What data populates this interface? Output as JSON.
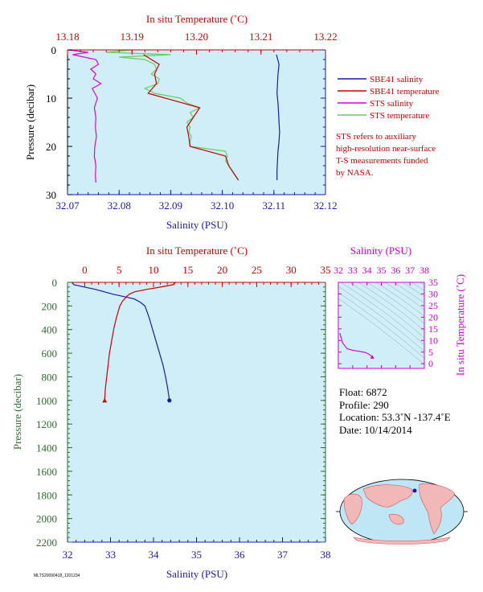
{
  "colors": {
    "plot_bg": "#d0eef8",
    "blue": "#1a1aaa",
    "red": "#cc0000",
    "magenta": "#cc00cc",
    "green": "#2e6b2e",
    "sts_temp": "#66cc66",
    "sts_sal": "#dd00dd"
  },
  "chart_data": [
    {
      "type": "line",
      "name_top_axis": "In situ Temperature (˚C)",
      "xlabel": "Salinity (PSU)",
      "ylabel": "Pressure (decibar)",
      "x_salinity_range": [
        32.07,
        32.12
      ],
      "x_salinity_ticks": [
        "32.07",
        "32.08",
        "32.09",
        "32.10",
        "32.11",
        "32.12"
      ],
      "x_temperature_range": [
        13.18,
        13.22
      ],
      "x_temperature_ticks": [
        "13.18",
        "13.19",
        "13.20",
        "13.21",
        "13.22"
      ],
      "y_pressure_range": [
        0,
        30
      ],
      "y_pressure_ticks": [
        "0",
        "10",
        "20",
        "30"
      ],
      "legend": [
        "SBE41 salinity",
        "SBE41 temperature",
        "STS salinity",
        "STS temperature"
      ],
      "note": [
        "STS refers to auxiliary",
        "high-resolution near-surface",
        "T-S measurements funded",
        "by NASA."
      ],
      "series": [
        {
          "name": "SBE41 salinity",
          "axis": "salinity",
          "pressure": [
            1,
            3,
            5,
            7,
            9,
            11,
            13,
            15,
            17,
            19,
            21,
            23,
            25,
            27
          ],
          "values": [
            32.1105,
            32.111,
            32.1108,
            32.1107,
            32.1106,
            32.1108,
            32.1109,
            32.111,
            32.1111,
            32.111,
            32.1108,
            32.1107,
            32.1106,
            32.1106
          ]
        },
        {
          "name": "SBE41 temperature",
          "axis": "temperature",
          "pressure": [
            1,
            3,
            5,
            7,
            9,
            12,
            14,
            16,
            18,
            20,
            22,
            24,
            26,
            27
          ],
          "values": [
            13.1918,
            13.1942,
            13.1935,
            13.1938,
            13.1925,
            13.2005,
            13.1995,
            13.1985,
            13.1988,
            13.199,
            13.2045,
            13.205,
            13.206,
            13.2065
          ]
        },
        {
          "name": "STS salinity",
          "axis": "salinity",
          "pressure": [
            0,
            0.5,
            1,
            2,
            3,
            4,
            5,
            6,
            7,
            8,
            10,
            12,
            14,
            16,
            18,
            20,
            22,
            24,
            26,
            27.5
          ],
          "values": [
            32.07,
            32.074,
            32.071,
            32.0755,
            32.076,
            32.0745,
            32.0755,
            32.075,
            32.0765,
            32.0748,
            32.0758,
            32.0752,
            32.0755,
            32.0754,
            32.0756,
            32.0753,
            32.0752,
            32.0755,
            32.0754,
            32.0755
          ]
        },
        {
          "name": "STS temperature",
          "axis": "temperature",
          "pressure": [
            0,
            0.5,
            1,
            1.5,
            2,
            3,
            4,
            5,
            6,
            7,
            8,
            9,
            10,
            11,
            12,
            13,
            14,
            15,
            16,
            17,
            18,
            19,
            20,
            21,
            22,
            23,
            24,
            25,
            26,
            27
          ],
          "values": [
            13.19,
            13.186,
            13.196,
            13.188,
            13.192,
            13.1935,
            13.1938,
            13.193,
            13.1942,
            13.194,
            13.192,
            13.1935,
            13.1975,
            13.1985,
            13.2005,
            13.199,
            13.1995,
            13.1985,
            13.199,
            13.1988,
            13.1992,
            13.199,
            13.199,
            13.2045,
            13.2048,
            13.2045,
            13.205,
            13.2055,
            13.206,
            13.2065
          ]
        }
      ]
    },
    {
      "type": "line",
      "name_top_axis": "In situ Temperature (˚C)",
      "xlabel": "Salinity (PSU)",
      "ylabel": "Pressure (decibar)",
      "x_salinity_range": [
        32,
        38
      ],
      "x_salinity_ticks": [
        "32",
        "33",
        "34",
        "35",
        "36",
        "37",
        "38"
      ],
      "x_temperature_range": [
        -2.5,
        35
      ],
      "x_temperature_ticks": [
        "0",
        "5",
        "10",
        "15",
        "20",
        "25",
        "30",
        "35"
      ],
      "y_pressure_range": [
        0,
        2200
      ],
      "y_pressure_ticks": [
        "0",
        "200",
        "400",
        "600",
        "800",
        "1000",
        "1200",
        "1400",
        "1600",
        "1800",
        "2000",
        "2200"
      ],
      "series": [
        {
          "name": "Salinity",
          "axis": "salinity",
          "pressure": [
            0,
            20,
            40,
            60,
            80,
            100,
            120,
            140,
            170,
            200,
            250,
            300,
            400,
            500,
            600,
            700,
            800,
            900,
            1000
          ],
          "values": [
            32.1,
            32.15,
            32.4,
            32.65,
            32.85,
            33.05,
            33.3,
            33.55,
            33.7,
            33.8,
            33.85,
            33.9,
            33.98,
            34.06,
            34.14,
            34.22,
            34.28,
            34.33,
            34.37
          ]
        },
        {
          "name": "Temperature",
          "axis": "temperature",
          "pressure": [
            0,
            20,
            40,
            60,
            80,
            100,
            120,
            140,
            160,
            200,
            300,
            400,
            500,
            600,
            700,
            800,
            900,
            1000
          ],
          "values": [
            13.2,
            12.9,
            11.0,
            9.0,
            7.3,
            6.5,
            6.1,
            5.8,
            5.5,
            5.1,
            4.6,
            4.2,
            3.9,
            3.6,
            3.4,
            3.2,
            3.0,
            2.9
          ]
        }
      ]
    },
    {
      "type": "scatter",
      "xlabel": "Salinity (PSU)",
      "ylabel": "In situ Temperature (˚C)",
      "x_ticks": [
        "32",
        "33",
        "34",
        "35",
        "36",
        "37",
        "38"
      ],
      "xlim": [
        32,
        38
      ],
      "y_ticks": [
        "0",
        "5",
        "10",
        "15",
        "20",
        "25",
        "30",
        "35"
      ],
      "ylim": [
        -2,
        35
      ],
      "series": [
        {
          "name": "T-S",
          "salinity": [
            32.1,
            32.3,
            32.6,
            33.0,
            33.5,
            33.9,
            34.1,
            34.2,
            34.3,
            34.37
          ],
          "temperature": [
            13.2,
            9.0,
            6.5,
            5.8,
            5.3,
            4.8,
            4.2,
            3.8,
            3.3,
            2.9
          ]
        }
      ]
    }
  ],
  "float_info": {
    "float": "Float:  6872",
    "profile": "Profile:  290",
    "location": "Location:  53.3˚N  -137.4˚E",
    "date": "Date:  10/14/2014"
  },
  "footer": "MLTS20090418_1201234"
}
